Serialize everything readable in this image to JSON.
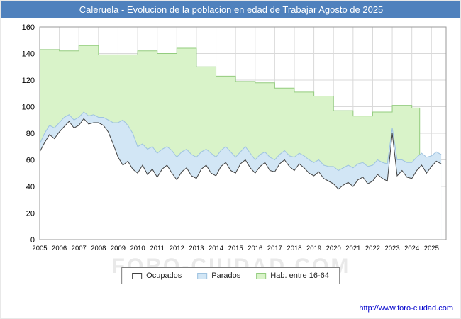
{
  "title_bar": {
    "text": "Caleruela - Evolucion de la poblacion en edad de Trabajar Agosto de 2025",
    "bg_color": "#4f81bd",
    "text_color": "#ffffff"
  },
  "watermark": "FORO-CIUDAD.COM",
  "footer": {
    "url": "http://www.foro-ciudad.com",
    "color": "#0000cc"
  },
  "legend": [
    {
      "label": "Ocupados",
      "fill": "#ffffff",
      "stroke": "#404040"
    },
    {
      "label": "Parados",
      "fill": "#d2e6f5",
      "stroke": "#9fc3e0"
    },
    {
      "label": "Hab. entre 16-64",
      "fill": "#d9f3c9",
      "stroke": "#93cc7e"
    }
  ],
  "chart_data": {
    "type": "area",
    "title": "Caleruela - Evolucion de la poblacion en edad de Trabajar Agosto de 2025",
    "xlabel": "",
    "ylabel": "",
    "ylim": [
      0,
      160
    ],
    "y_ticks": [
      0,
      20,
      40,
      60,
      80,
      100,
      120,
      140,
      160
    ],
    "x_ticks": [
      2005,
      2006,
      2007,
      2008,
      2009,
      2010,
      2011,
      2012,
      2013,
      2014,
      2015,
      2016,
      2017,
      2018,
      2019,
      2020,
      2021,
      2022,
      2023,
      2024,
      2025
    ],
    "x_max_plot": 2025.75,
    "grid": true,
    "legend_position": "bottom",
    "colors": {
      "grid": "#d9d9d9",
      "plot_border": "#9a9a9a",
      "hab_fill": "#d9f3c9",
      "hab_stroke": "#93cc7e",
      "parados_fill": "#d2e6f5",
      "parados_stroke": "#9fc3e0",
      "ocupados_fill": "#ffffff",
      "ocupados_stroke": "#404040"
    },
    "series": [
      {
        "name": "Hab. entre 16-64",
        "style": "step-area-annual",
        "x_start": 2005,
        "x_step": 1,
        "x_end": 2024.4,
        "values": [
          143,
          142,
          146,
          139,
          139,
          142,
          140,
          144,
          130,
          123,
          119,
          118,
          114,
          111,
          108,
          97,
          93,
          96,
          101,
          99
        ]
      },
      {
        "name": "Ocupados",
        "style": "area-line",
        "x_start": 2005,
        "x_step": 0.25,
        "values": [
          66,
          73,
          79,
          76,
          81,
          85,
          89,
          84,
          86,
          91,
          87,
          88,
          88,
          86,
          81,
          72,
          62,
          56,
          59,
          53,
          50,
          56,
          49,
          53,
          47,
          53,
          56,
          50,
          45,
          51,
          54,
          48,
          46,
          53,
          56,
          50,
          48,
          55,
          58,
          52,
          50,
          57,
          60,
          54,
          50,
          55,
          58,
          52,
          51,
          57,
          60,
          55,
          52,
          57,
          54,
          50,
          48,
          51,
          46,
          44,
          42,
          38,
          41,
          43,
          40,
          45,
          47,
          42,
          44,
          49,
          46,
          44,
          80,
          48,
          52,
          47,
          46,
          52,
          56,
          50,
          55,
          59,
          57
        ]
      },
      {
        "name": "Parados",
        "style": "stacked-band-on-ocupados",
        "x_start": 2005,
        "x_step": 0.25,
        "values": [
          6,
          7,
          7,
          8,
          7,
          7,
          5,
          6,
          6,
          5,
          6,
          6,
          4,
          6,
          9,
          16,
          26,
          34,
          27,
          27,
          20,
          16,
          19,
          17,
          18,
          15,
          14,
          17,
          17,
          15,
          14,
          16,
          16,
          13,
          12,
          15,
          14,
          12,
          12,
          14,
          12,
          9,
          10,
          11,
          10,
          9,
          8,
          10,
          9,
          7,
          7,
          8,
          10,
          8,
          9,
          10,
          10,
          9,
          10,
          11,
          13,
          14,
          13,
          13,
          14,
          12,
          11,
          13,
          12,
          11,
          12,
          13,
          4,
          12,
          8,
          11,
          12,
          10,
          9,
          12,
          8,
          7,
          7
        ]
      }
    ]
  }
}
